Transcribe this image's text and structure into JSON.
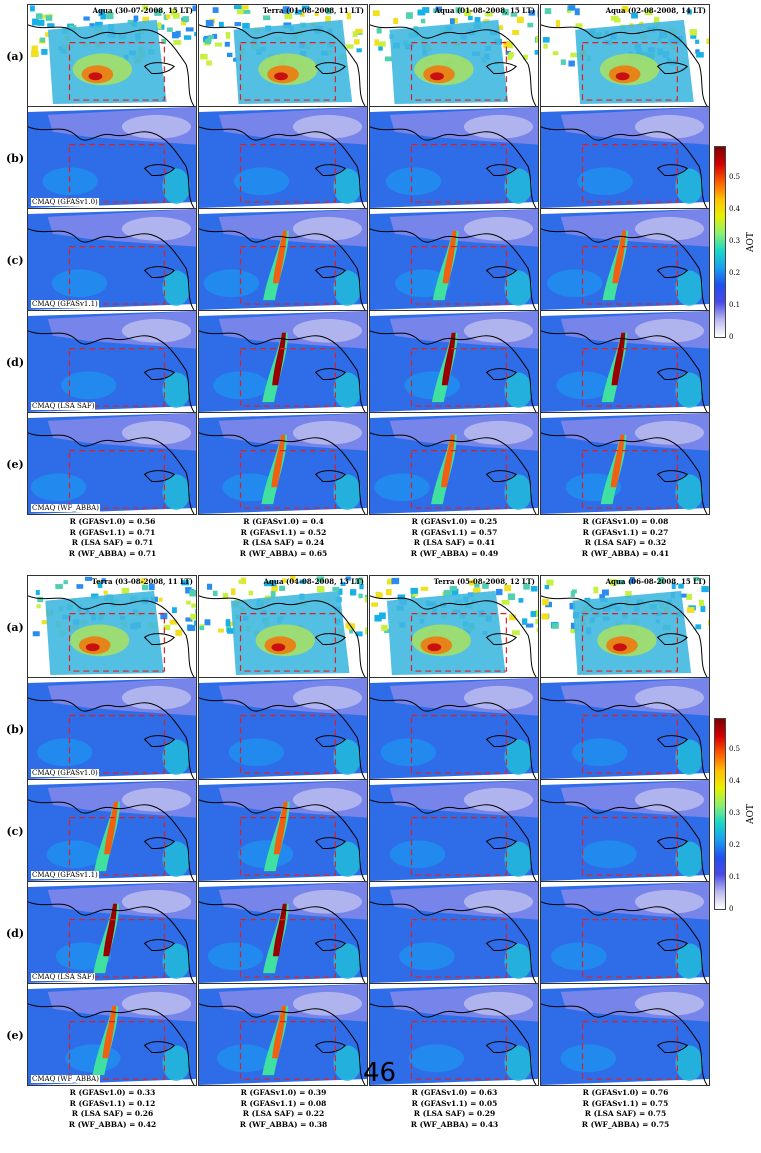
{
  "figure": {
    "row_labels": [
      "(a)",
      "(b)",
      "(c)",
      "(d)",
      "(e)"
    ],
    "model_labels": [
      "CMAQ (GFASv1.0)",
      "CMAQ (GFASv1.1)",
      "CMAQ (LSA SAF)",
      "CMAQ (WF_ABBA)"
    ],
    "colorbar": {
      "title": "AOT",
      "ticks": [
        "0.5",
        "0.4",
        "0.3",
        "0.2",
        "0.1",
        "0"
      ],
      "tick_values": [
        0.5,
        0.4,
        0.3,
        0.2,
        0.1,
        0
      ],
      "range": [
        0,
        0.6
      ],
      "colors": [
        "#7b0000",
        "#d40000",
        "#ff5a00",
        "#ffc000",
        "#e8f000",
        "#8cf070",
        "#18d8c8",
        "#18a0f0",
        "#2050f0",
        "#4a4ae8",
        "#b8b8f0",
        "#ffffff"
      ]
    },
    "blocks": [
      {
        "titles": [
          "Aqua (30-07-2008, 15 LT)",
          "Terra (01-08-2008, 11 LT)",
          "Aqua (01-08-2008, 15 LT)",
          "Aqua (02-08-2008, 14 LT)"
        ],
        "stats": [
          [
            "R (GFASv1.0) = 0.56",
            "R (GFASv1.1) = 0.71",
            "R (LSA SAF) = 0.71",
            "R (WF_ABBA) = 0.71"
          ],
          [
            "R (GFASv1.0) = 0.4",
            "R (GFASv1.1) = 0.52",
            "R (LSA SAF) = 0.24",
            "R (WF_ABBA) = 0.65"
          ],
          [
            "R (GFASv1.0) = 0.25",
            "R (GFASv1.1) = 0.57",
            "R (LSA SAF) = 0.41",
            "R (WF_ABBA) = 0.49"
          ],
          [
            "R (GFASv1.0) = 0.08",
            "R (GFASv1.1) = 0.27",
            "R (LSA SAF) = 0.32",
            "R (WF_ABBA) = 0.41"
          ]
        ]
      },
      {
        "titles": [
          "Terra (03-08-2008, 11 LT)",
          "Aqua (04-08-2008, 13 LT)",
          "Terra (05-08-2008, 12 LT)",
          "Aqua (06-08-2008, 15 LT)"
        ],
        "stats": [
          [
            "R (GFASv1.0) = 0.33",
            "R (GFASv1.1) = 0.12",
            "R (LSA SAF) = 0.26",
            "R (WF_ABBA) = 0.42"
          ],
          [
            "R (GFASv1.0) = 0.39",
            "R (GFASv1.1) = 0.08",
            "R (LSA SAF) = 0.22",
            "R (WF_ABBA) = 0.38"
          ],
          [
            "R (GFASv1.0) = 0.63",
            "R (GFASv1.1) = 0.05",
            "R (LSA SAF) = 0.29",
            "R (WF_ABBA) = 0.43"
          ],
          [
            "R (GFASv1.0) = 0.76",
            "R (GFASv1.1) = 0.75",
            "R (LSA SAF) = 0.75",
            "R (WF_ABBA) = 0.75"
          ]
        ]
      }
    ]
  },
  "page_number": "46"
}
